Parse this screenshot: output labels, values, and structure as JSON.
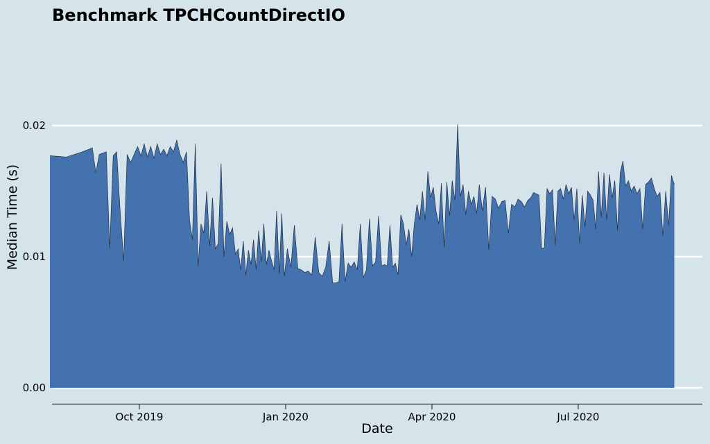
{
  "chart_data": {
    "type": "area",
    "title": "Benchmark TPCHCountDirectIO",
    "xlabel": "Date",
    "ylabel": "Median Time (s)",
    "color": "#4472ae",
    "line_color": "#1f2f45",
    "grid": true,
    "xlim": [
      "2019-08",
      "2020-09"
    ],
    "xticks": [
      {
        "value": "2019-10",
        "label": "Oct 2019"
      },
      {
        "value": "2020-01",
        "label": "Jan 2020"
      },
      {
        "value": "2020-04",
        "label": "Apr 2020"
      },
      {
        "value": "2020-07",
        "label": "Jul 2020"
      }
    ],
    "ylim": [
      -0.00127,
      0.0272
    ],
    "yticks": [
      {
        "value": 0,
        "label": "0.00"
      },
      0.01,
      0.02
    ],
    "x": [
      "2019-08",
      "2019-08",
      "2019-08",
      "2019-09",
      "2019-09",
      "2019-09",
      "2019-09",
      "2019-09",
      "2019-09",
      "2019-09",
      "2019-09",
      "2019-09",
      "2019-09",
      "2019-09",
      "2019-09",
      "2019-09",
      "2019-09",
      "2019-10",
      "2019-10",
      "2019-10",
      "2019-10",
      "2019-10",
      "2019-10",
      "2019-10",
      "2019-10",
      "2019-10",
      "2019-10",
      "2019-10",
      "2019-10",
      "2019-10",
      "2019-10",
      "2019-10",
      "2019-11",
      "2019-11",
      "2019-11",
      "2019-11",
      "2019-11",
      "2019-11",
      "2019-11",
      "2019-11",
      "2019-11",
      "2019-11",
      "2019-11",
      "2019-11",
      "2019-11",
      "2019-11",
      "2019-11",
      "2019-11",
      "2019-11",
      "2019-12",
      "2019-12",
      "2019-12",
      "2019-12",
      "2019-12",
      "2019-12",
      "2019-12",
      "2019-12",
      "2019-12",
      "2019-12",
      "2019-12",
      "2019-12",
      "2019-12",
      "2019-12",
      "2019-12",
      "2019-12",
      "2019-12",
      "2019-12",
      "2019-12",
      "2020-01",
      "2020-01",
      "2020-01",
      "2020-01",
      "2020-01",
      "2020-01",
      "2020-01",
      "2020-01",
      "2020-01",
      "2020-01",
      "2020-01",
      "2020-01",
      "2020-01",
      "2020-01",
      "2020-02",
      "2020-02",
      "2020-02",
      "2020-02",
      "2020-02",
      "2020-02",
      "2020-02",
      "2020-02",
      "2020-02",
      "2020-02",
      "2020-02",
      "2020-02",
      "2020-02",
      "2020-02",
      "2020-02",
      "2020-02",
      "2020-03",
      "2020-03",
      "2020-03",
      "2020-03",
      "2020-03",
      "2020-03",
      "2020-03",
      "2020-03",
      "2020-03",
      "2020-03",
      "2020-03",
      "2020-03",
      "2020-03",
      "2020-03",
      "2020-03",
      "2020-03",
      "2020-03",
      "2020-03",
      "2020-04",
      "2020-04",
      "2020-04",
      "2020-04",
      "2020-04",
      "2020-04",
      "2020-04",
      "2020-04",
      "2020-04",
      "2020-04",
      "2020-04",
      "2020-04",
      "2020-04",
      "2020-04",
      "2020-04",
      "2020-04",
      "2020-04",
      "2020-04",
      "2020-05",
      "2020-05",
      "2020-05",
      "2020-05",
      "2020-05",
      "2020-05",
      "2020-05",
      "2020-05",
      "2020-05",
      "2020-05",
      "2020-05",
      "2020-05",
      "2020-05",
      "2020-05",
      "2020-05",
      "2020-06",
      "2020-06",
      "2020-06",
      "2020-06",
      "2020-06",
      "2020-06",
      "2020-06",
      "2020-06",
      "2020-06",
      "2020-06",
      "2020-06",
      "2020-06",
      "2020-06",
      "2020-06",
      "2020-06",
      "2020-06",
      "2020-06",
      "2020-06",
      "2020-07",
      "2020-07",
      "2020-07",
      "2020-07",
      "2020-07",
      "2020-07",
      "2020-07",
      "2020-07",
      "2020-07",
      "2020-07",
      "2020-07",
      "2020-07",
      "2020-07",
      "2020-07",
      "2020-07",
      "2020-07",
      "2020-07",
      "2020-07",
      "2020-08",
      "2020-08",
      "2020-08",
      "2020-08",
      "2020-08",
      "2020-08",
      "2020-08",
      "2020-08",
      "2020-08",
      "2020-08",
      "2020-08",
      "2020-08",
      "2020-08",
      "2020-08",
      "2020-08",
      "2020-08",
      "2020-08"
    ],
    "values": [
      0.0177,
      0.0176,
      0.018,
      0.0183,
      0.0164,
      0.0178,
      0.0179,
      0.018,
      0.0106,
      0.0177,
      0.018,
      0.0134,
      0.0097,
      0.0178,
      0.0172,
      0.0178,
      0.0184,
      0.0177,
      0.0186,
      0.0176,
      0.0184,
      0.0175,
      0.0186,
      0.0178,
      0.0182,
      0.0177,
      0.0184,
      0.018,
      0.0189,
      0.0178,
      0.0172,
      0.018,
      0.0128,
      0.0113,
      0.0186,
      0.0093,
      0.0125,
      0.0118,
      0.015,
      0.0108,
      0.0145,
      0.0106,
      0.011,
      0.0171,
      0.01,
      0.0127,
      0.0117,
      0.0122,
      0.0102,
      0.0106,
      0.009,
      0.0112,
      0.0086,
      0.0105,
      0.0094,
      0.0113,
      0.009,
      0.012,
      0.0096,
      0.0125,
      0.0094,
      0.0105,
      0.0097,
      0.009,
      0.0135,
      0.0087,
      0.0133,
      0.0085,
      0.0106,
      0.0092,
      0.0124,
      0.0091,
      0.009,
      0.0088,
      0.0089,
      0.0086,
      0.0115,
      0.0088,
      0.0085,
      0.0092,
      0.0112,
      0.008,
      0.008,
      0.0081,
      0.0125,
      0.0081,
      0.0095,
      0.0092,
      0.0096,
      0.009,
      0.0125,
      0.0084,
      0.009,
      0.0129,
      0.0093,
      0.0096,
      0.0131,
      0.0093,
      0.0094,
      0.0093,
      0.0124,
      0.0092,
      0.0095,
      0.0086,
      0.0132,
      0.0125,
      0.0109,
      0.0121,
      0.01,
      0.0125,
      0.014,
      0.0128,
      0.015,
      0.0128,
      0.0165,
      0.0145,
      0.0153,
      0.0135,
      0.0125,
      0.0156,
      0.0107,
      0.0157,
      0.0131,
      0.0158,
      0.0143,
      0.0201,
      0.0146,
      0.0155,
      0.0132,
      0.015,
      0.014,
      0.0146,
      0.0133,
      0.0155,
      0.0135,
      0.0153,
      0.0105,
      0.0146,
      0.0144,
      0.0137,
      0.0142,
      0.0143,
      0.0118,
      0.014,
      0.0138,
      0.0144,
      0.0142,
      0.0138,
      0.0143,
      0.0145,
      0.0149,
      0.0148,
      0.0147,
      0.0106,
      0.0107,
      0.0152,
      0.0148,
      0.0151,
      0.0109,
      0.015,
      0.0152,
      0.0144,
      0.0155,
      0.0148,
      0.0153,
      0.0128,
      0.0152,
      0.011,
      0.0147,
      0.0123,
      0.015,
      0.0147,
      0.0143,
      0.0121,
      0.0165,
      0.013,
      0.0164,
      0.0128,
      0.0163,
      0.0145,
      0.0158,
      0.012,
      0.0164,
      0.0173,
      0.0154,
      0.0158,
      0.015,
      0.0154,
      0.0148,
      0.0152,
      0.0121,
      0.0155,
      0.0157,
      0.016,
      0.0152,
      0.0146,
      0.0149,
      0.0116,
      0.015,
      0.0124,
      0.0162,
      0.0155
    ]
  }
}
